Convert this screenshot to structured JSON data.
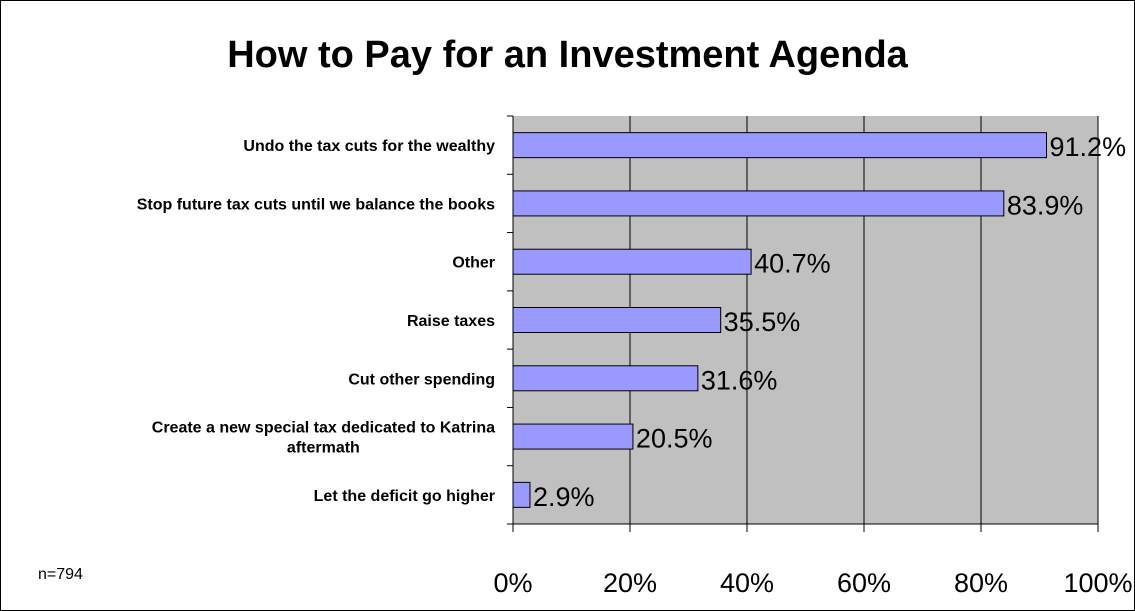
{
  "chart_data": {
    "type": "bar",
    "orientation": "horizontal",
    "title": "How to Pay for an Investment Agenda",
    "xlabel": "",
    "ylabel": "",
    "categories": [
      "Undo the tax cuts for the wealthy",
      "Stop future tax cuts until we balance the books",
      "Other",
      "Raise taxes",
      "Cut other spending",
      "Create a new special tax dedicated to Katrina aftermath",
      "Let the deficit go higher"
    ],
    "category_label_lines": [
      [
        "Undo the tax cuts for the wealthy"
      ],
      [
        "Stop future tax cuts until we balance the books"
      ],
      [
        "Other"
      ],
      [
        "Raise taxes"
      ],
      [
        "Cut other spending"
      ],
      [
        "Create a new special tax dedicated to Katrina",
        "aftermath"
      ],
      [
        "Let the deficit go higher"
      ]
    ],
    "values": [
      91.2,
      83.9,
      40.7,
      35.5,
      31.6,
      20.5,
      2.9
    ],
    "value_labels": [
      "91.2%",
      "83.9%",
      "40.7%",
      "35.5%",
      "31.6%",
      "20.5%",
      "2.9%"
    ],
    "xlim": [
      0,
      100
    ],
    "x_ticks": [
      0,
      20,
      40,
      60,
      80,
      100
    ],
    "x_tick_labels": [
      "0%",
      "20%",
      "40%",
      "60%",
      "80%",
      "100%"
    ],
    "grid": true,
    "legend": "none",
    "annotation": "n=794",
    "colors": {
      "bar_fill": "#9999ff",
      "plot_background": "#c0c0c0",
      "gridline": "#000000",
      "border": "#000000"
    }
  }
}
